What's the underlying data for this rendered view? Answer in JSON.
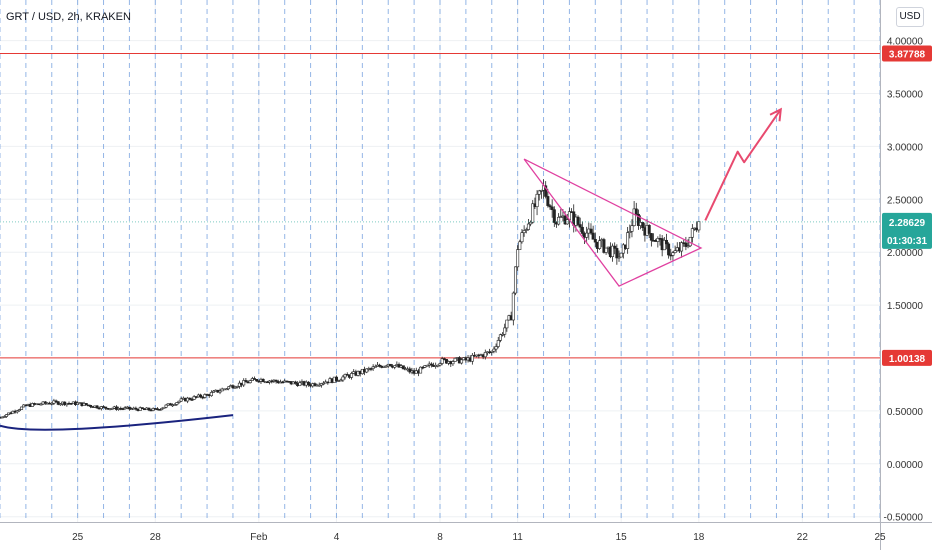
{
  "header": {
    "symbol_line": "GRT / USD, 2h, KRAKEN"
  },
  "currency_button": "USD",
  "colors": {
    "up": "#26a69a",
    "down": "#ef5350",
    "candle_body": "#3a3a3a",
    "hline": "#e53935",
    "triangle": "#e040a0",
    "arrow": "#e84a6f",
    "curve": "#1a237e",
    "grid_dash": "#5b8fd9",
    "grid": "#eef0f3",
    "axis_text": "#333333",
    "price_tag": "#26a69a"
  },
  "chart_data": {
    "type": "candlestick",
    "timeframe": "2h",
    "y_axis": {
      "range": [
        -0.55,
        4.1
      ],
      "ticks": [
        -0.5,
        0.0,
        0.5,
        1.0,
        1.5,
        2.0,
        2.5,
        3.0,
        3.5,
        4.0
      ],
      "tick_labels": [
        "-0.50000",
        "0.00000",
        "0.50000",
        "1.00000",
        "1.50000",
        "2.00000",
        "2.50000",
        "3.00000",
        "3.50000",
        "4.00000"
      ]
    },
    "x_axis": {
      "range": [
        "2021-01-22",
        "2021-02-25"
      ],
      "tick_labels": [
        {
          "date": "2021-01-25",
          "label": "25"
        },
        {
          "date": "2021-01-28",
          "label": "28"
        },
        {
          "date": "2021-02-01",
          "label": "Feb"
        },
        {
          "date": "2021-02-04",
          "label": "4"
        },
        {
          "date": "2021-02-08",
          "label": "8"
        },
        {
          "date": "2021-02-11",
          "label": "11"
        },
        {
          "date": "2021-02-15",
          "label": "15"
        },
        {
          "date": "2021-02-18",
          "label": "18"
        },
        {
          "date": "2021-02-22",
          "label": "22"
        },
        {
          "date": "2021-02-25",
          "label": "25"
        }
      ]
    },
    "horizontal_lines": [
      {
        "price": 3.87788,
        "label": "3.87788"
      },
      {
        "price": 1.00138,
        "label": "1.00138"
      }
    ],
    "last_price": {
      "price": 2.28629,
      "label": "2.28629",
      "countdown": "01:30:31"
    },
    "close_path": [
      {
        "date": "2021-01-22",
        "price": 0.44
      },
      {
        "date": "2021-01-23",
        "price": 0.55
      },
      {
        "date": "2021-01-24",
        "price": 0.58
      },
      {
        "date": "2021-01-25",
        "price": 0.57
      },
      {
        "date": "2021-01-26",
        "price": 0.53
      },
      {
        "date": "2021-01-27",
        "price": 0.52
      },
      {
        "date": "2021-01-28",
        "price": 0.51
      },
      {
        "date": "2021-01-29",
        "price": 0.6
      },
      {
        "date": "2021-01-30",
        "price": 0.65
      },
      {
        "date": "2021-01-31",
        "price": 0.74
      },
      {
        "date": "2021-02-01",
        "price": 0.8
      },
      {
        "date": "2021-02-02",
        "price": 0.77
      },
      {
        "date": "2021-02-03",
        "price": 0.75
      },
      {
        "date": "2021-02-04",
        "price": 0.8
      },
      {
        "date": "2021-02-05",
        "price": 0.87
      },
      {
        "date": "2021-02-06",
        "price": 0.95
      },
      {
        "date": "2021-02-07",
        "price": 0.86
      },
      {
        "date": "2021-02-08",
        "price": 0.97
      },
      {
        "date": "2021-02-09",
        "price": 0.98
      },
      {
        "date": "2021-02-10",
        "price": 1.06
      },
      {
        "date": "2021-02-10T18:00",
        "price": 1.4
      },
      {
        "date": "2021-02-11",
        "price": 2.05
      },
      {
        "date": "2021-02-11T12:00",
        "price": 2.35
      },
      {
        "date": "2021-02-12",
        "price": 2.6
      },
      {
        "date": "2021-02-12T12:00",
        "price": 2.3
      },
      {
        "date": "2021-02-13",
        "price": 2.35
      },
      {
        "date": "2021-02-14",
        "price": 2.1
      },
      {
        "date": "2021-02-15",
        "price": 1.95
      },
      {
        "date": "2021-02-15T12:00",
        "price": 2.35
      },
      {
        "date": "2021-02-16",
        "price": 2.2
      },
      {
        "date": "2021-02-17",
        "price": 1.98
      },
      {
        "date": "2021-02-17T12:00",
        "price": 2.07
      },
      {
        "date": "2021-02-18",
        "price": 2.29
      }
    ],
    "annotations": {
      "triangle": [
        {
          "date": "2021-02-11T06:00",
          "price": 2.88
        },
        {
          "date": "2021-02-18T02:00",
          "price": 2.04
        },
        {
          "date": "2021-02-14T22:00",
          "price": 1.68
        }
      ],
      "forecast_arrow": [
        {
          "date": "2021-02-18T06:00",
          "price": 2.3
        },
        {
          "date": "2021-02-19T12:00",
          "price": 2.95
        },
        {
          "date": "2021-02-19T18:00",
          "price": 2.85
        },
        {
          "date": "2021-02-21T04:00",
          "price": 3.35
        }
      ],
      "support_curve": [
        {
          "date": "2021-01-22",
          "price": 0.36
        },
        {
          "date": "2021-01-25",
          "price": 0.33
        },
        {
          "date": "2021-01-31",
          "price": 0.46
        }
      ]
    }
  }
}
